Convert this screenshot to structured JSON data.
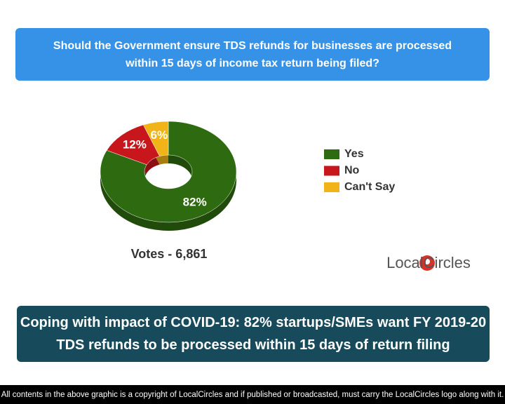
{
  "chart_data": {
    "type": "pie",
    "donut": true,
    "title": "Should the Government ensure TDS refunds for businesses are processed within 15 days of income tax return being filed?",
    "categories": [
      "Yes",
      "No",
      "Can't Say"
    ],
    "values": [
      82,
      12,
      6
    ],
    "value_labels": [
      "82%",
      "12%",
      "6%"
    ],
    "colors": [
      "#2e6b10",
      "#c8161d",
      "#f0b418"
    ],
    "legend": "right",
    "annotation": "Votes - 6,861"
  },
  "logo": "LocalCircles",
  "headline": "Coping with impact of COVID-19: 82% startups/SMEs want FY 2019-20 TDS refunds to be processed within 15 days of return filing",
  "footer": "All contents in the above graphic is a copyright of LocalCircles and if published or broadcasted, must carry the LocalCircles logo along with it."
}
